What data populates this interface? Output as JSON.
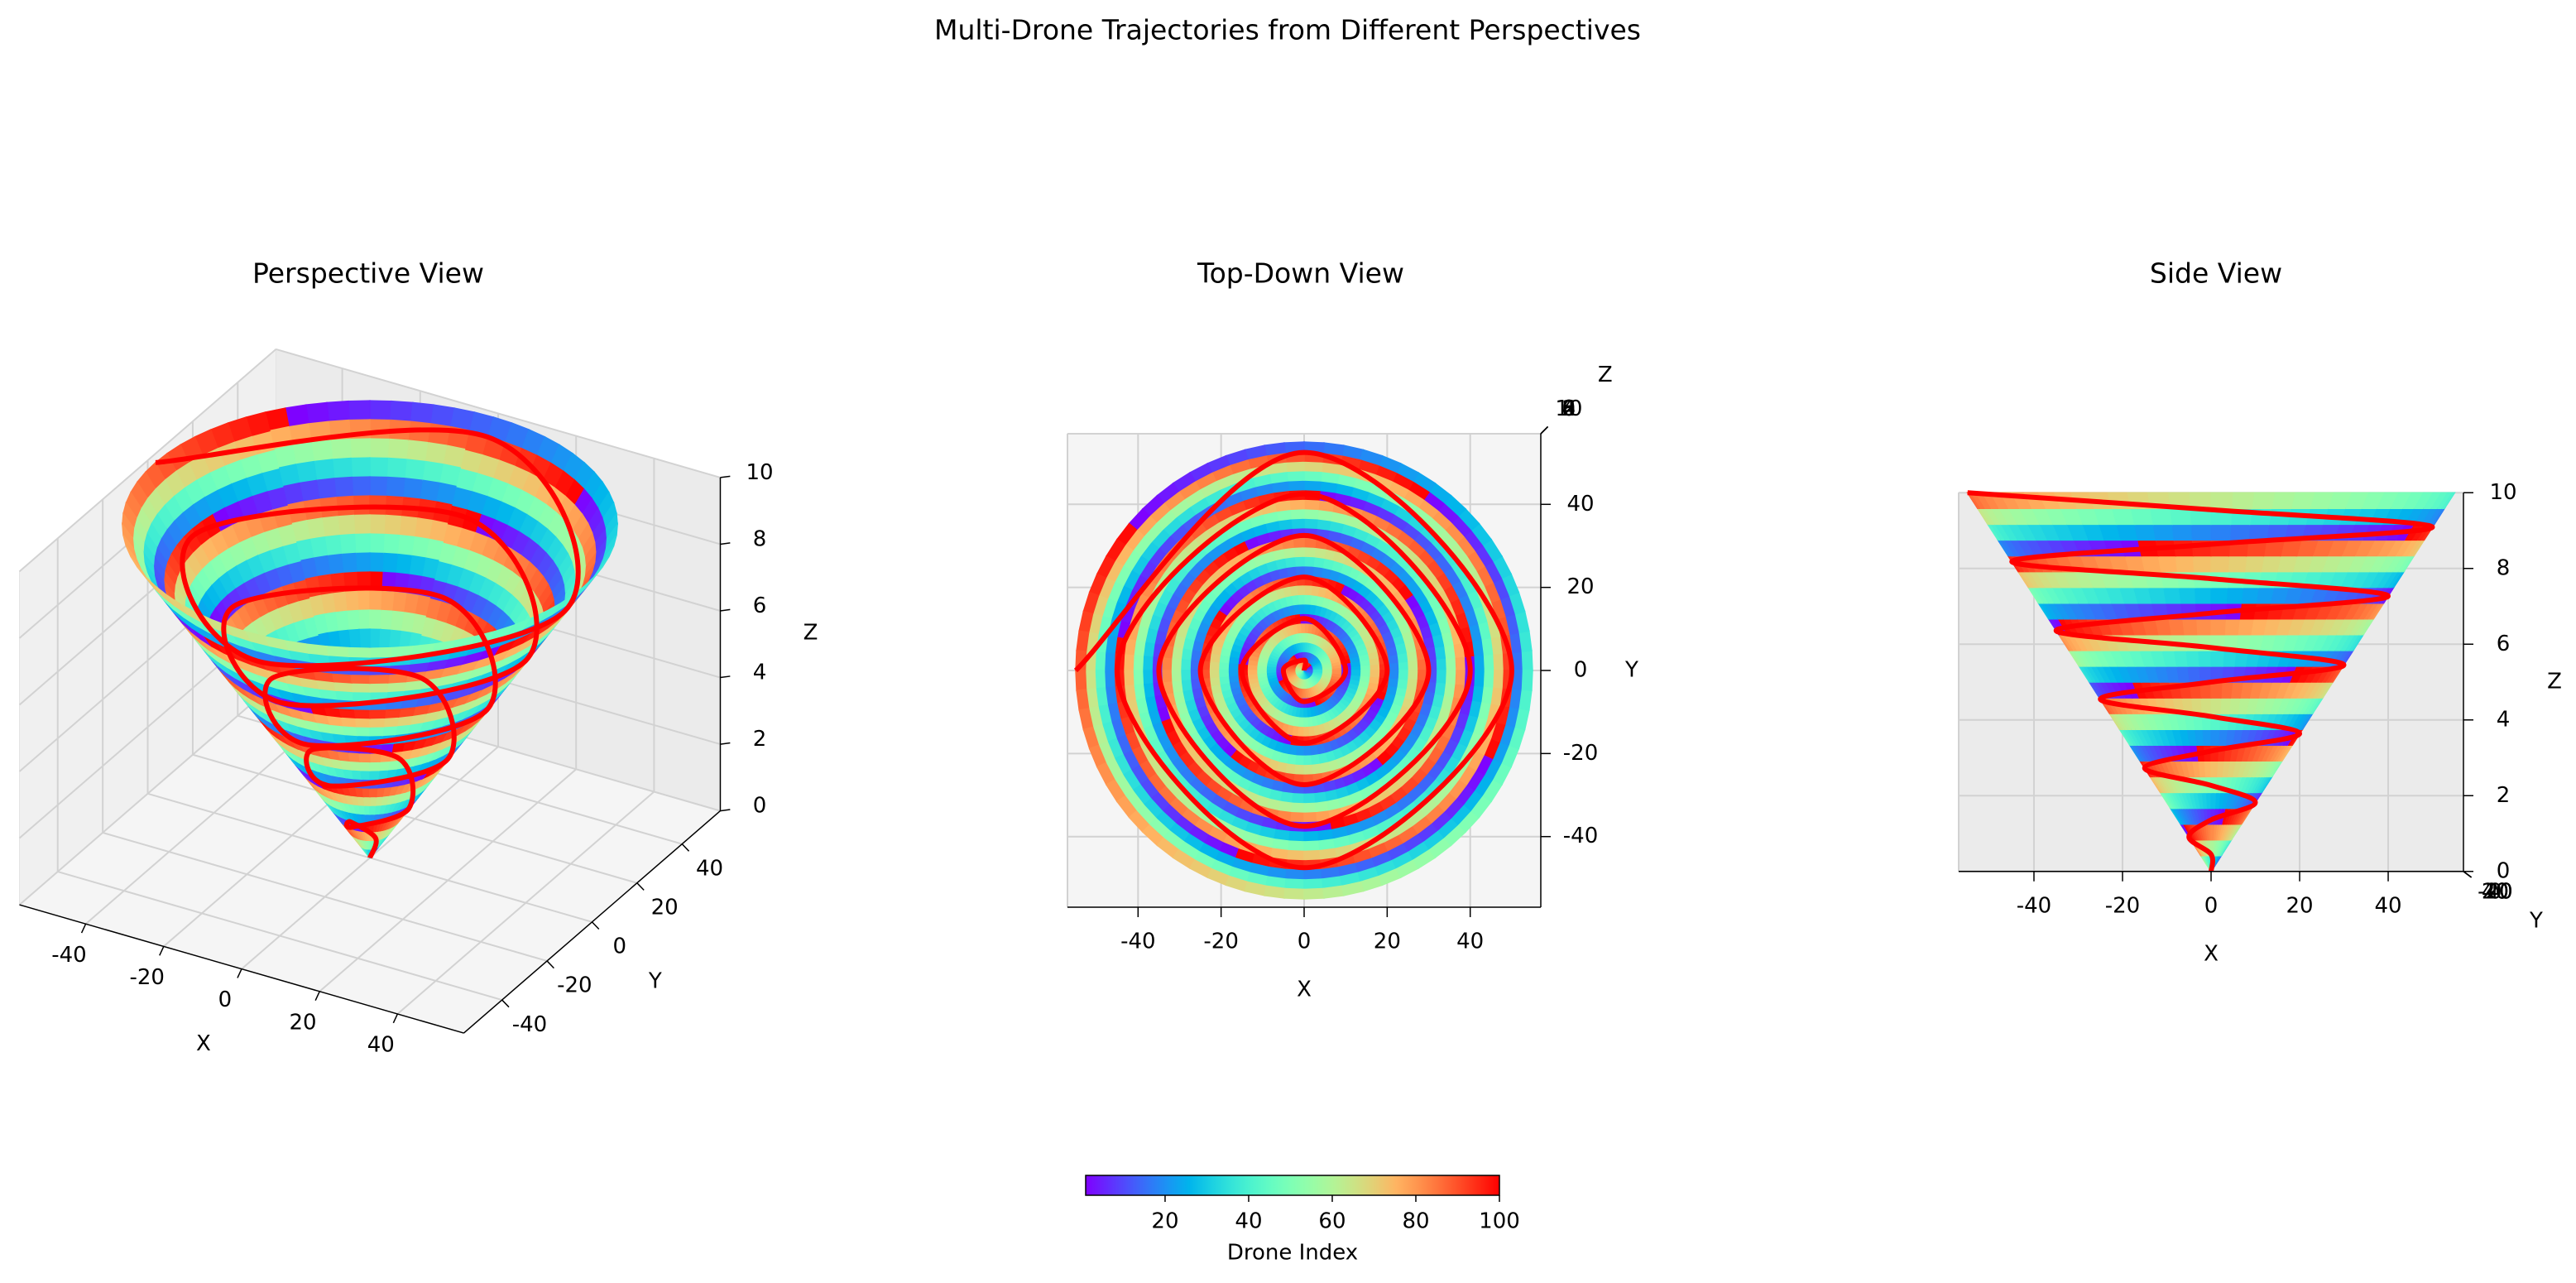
{
  "chart_data": {
    "type": "scatter3d",
    "title": "Multi-Drone Trajectories from Different Perspectives",
    "colormap": "rainbow",
    "trajectory": {
      "color": "#ff0000",
      "x": [
        0,
        0,
        -5,
        0,
        10,
        0,
        -15,
        0,
        20,
        0,
        -25,
        0,
        30,
        0,
        -35,
        0,
        40,
        0,
        -45,
        0,
        50,
        0,
        -55
      ],
      "y": [
        0,
        2.5,
        0,
        -7.5,
        0,
        12.5,
        0,
        -17.5,
        0,
        22.5,
        0,
        -27.5,
        0,
        32.5,
        0,
        -37.5,
        0,
        42.5,
        0,
        -47.5,
        0,
        52.5,
        0
      ],
      "z": [
        0,
        0.45,
        0.91,
        1.36,
        1.82,
        2.27,
        2.73,
        3.18,
        3.64,
        4.09,
        4.55,
        5,
        5.45,
        5.91,
        6.36,
        6.82,
        7.27,
        7.73,
        8.18,
        8.64,
        9.09,
        9.55,
        10
      ]
    },
    "views": [
      {
        "title": "Perspective View",
        "elev": 30,
        "azim": -60,
        "xlabel": "X",
        "ylabel": "Y",
        "zlabel": "Z",
        "xlim": [
          -57,
          57
        ],
        "ylim": [
          -57,
          57
        ],
        "zlim": [
          0,
          10
        ],
        "xticks": [
          -40,
          -20,
          0,
          20,
          40
        ],
        "yticks": [
          -40,
          -20,
          0,
          20,
          40
        ],
        "zticks": [
          0,
          2,
          4,
          6,
          8,
          10
        ]
      },
      {
        "title": "Top-Down View",
        "elev": 90,
        "azim": -90,
        "xlabel": "X",
        "ylabel": "Y",
        "zlabel": "Z",
        "xlim": [
          -57,
          57
        ],
        "ylim": [
          -57,
          57
        ],
        "zlim": [
          0,
          10
        ],
        "xticks": [
          -40,
          -20,
          0,
          20,
          40
        ],
        "yticks": [
          -40,
          -20,
          0,
          20,
          40
        ],
        "zticks": [
          0,
          2,
          4,
          6,
          8,
          10
        ]
      },
      {
        "title": "Side View",
        "elev": 0,
        "azim": -90,
        "xlabel": "X",
        "ylabel": "Y",
        "zlabel": "Z",
        "xlim": [
          -57,
          57
        ],
        "ylim": [
          -57,
          57
        ],
        "zlim": [
          0,
          10
        ],
        "xticks": [
          -40,
          -20,
          0,
          20,
          40
        ],
        "yticks": [
          -40,
          -20,
          0,
          20,
          40
        ],
        "zticks": [
          0,
          2,
          4,
          6,
          8,
          10
        ]
      }
    ],
    "colorbar": {
      "label": "Drone Index",
      "clim": [
        1,
        100
      ],
      "ticks": [
        20,
        40,
        60,
        80,
        100
      ]
    }
  }
}
